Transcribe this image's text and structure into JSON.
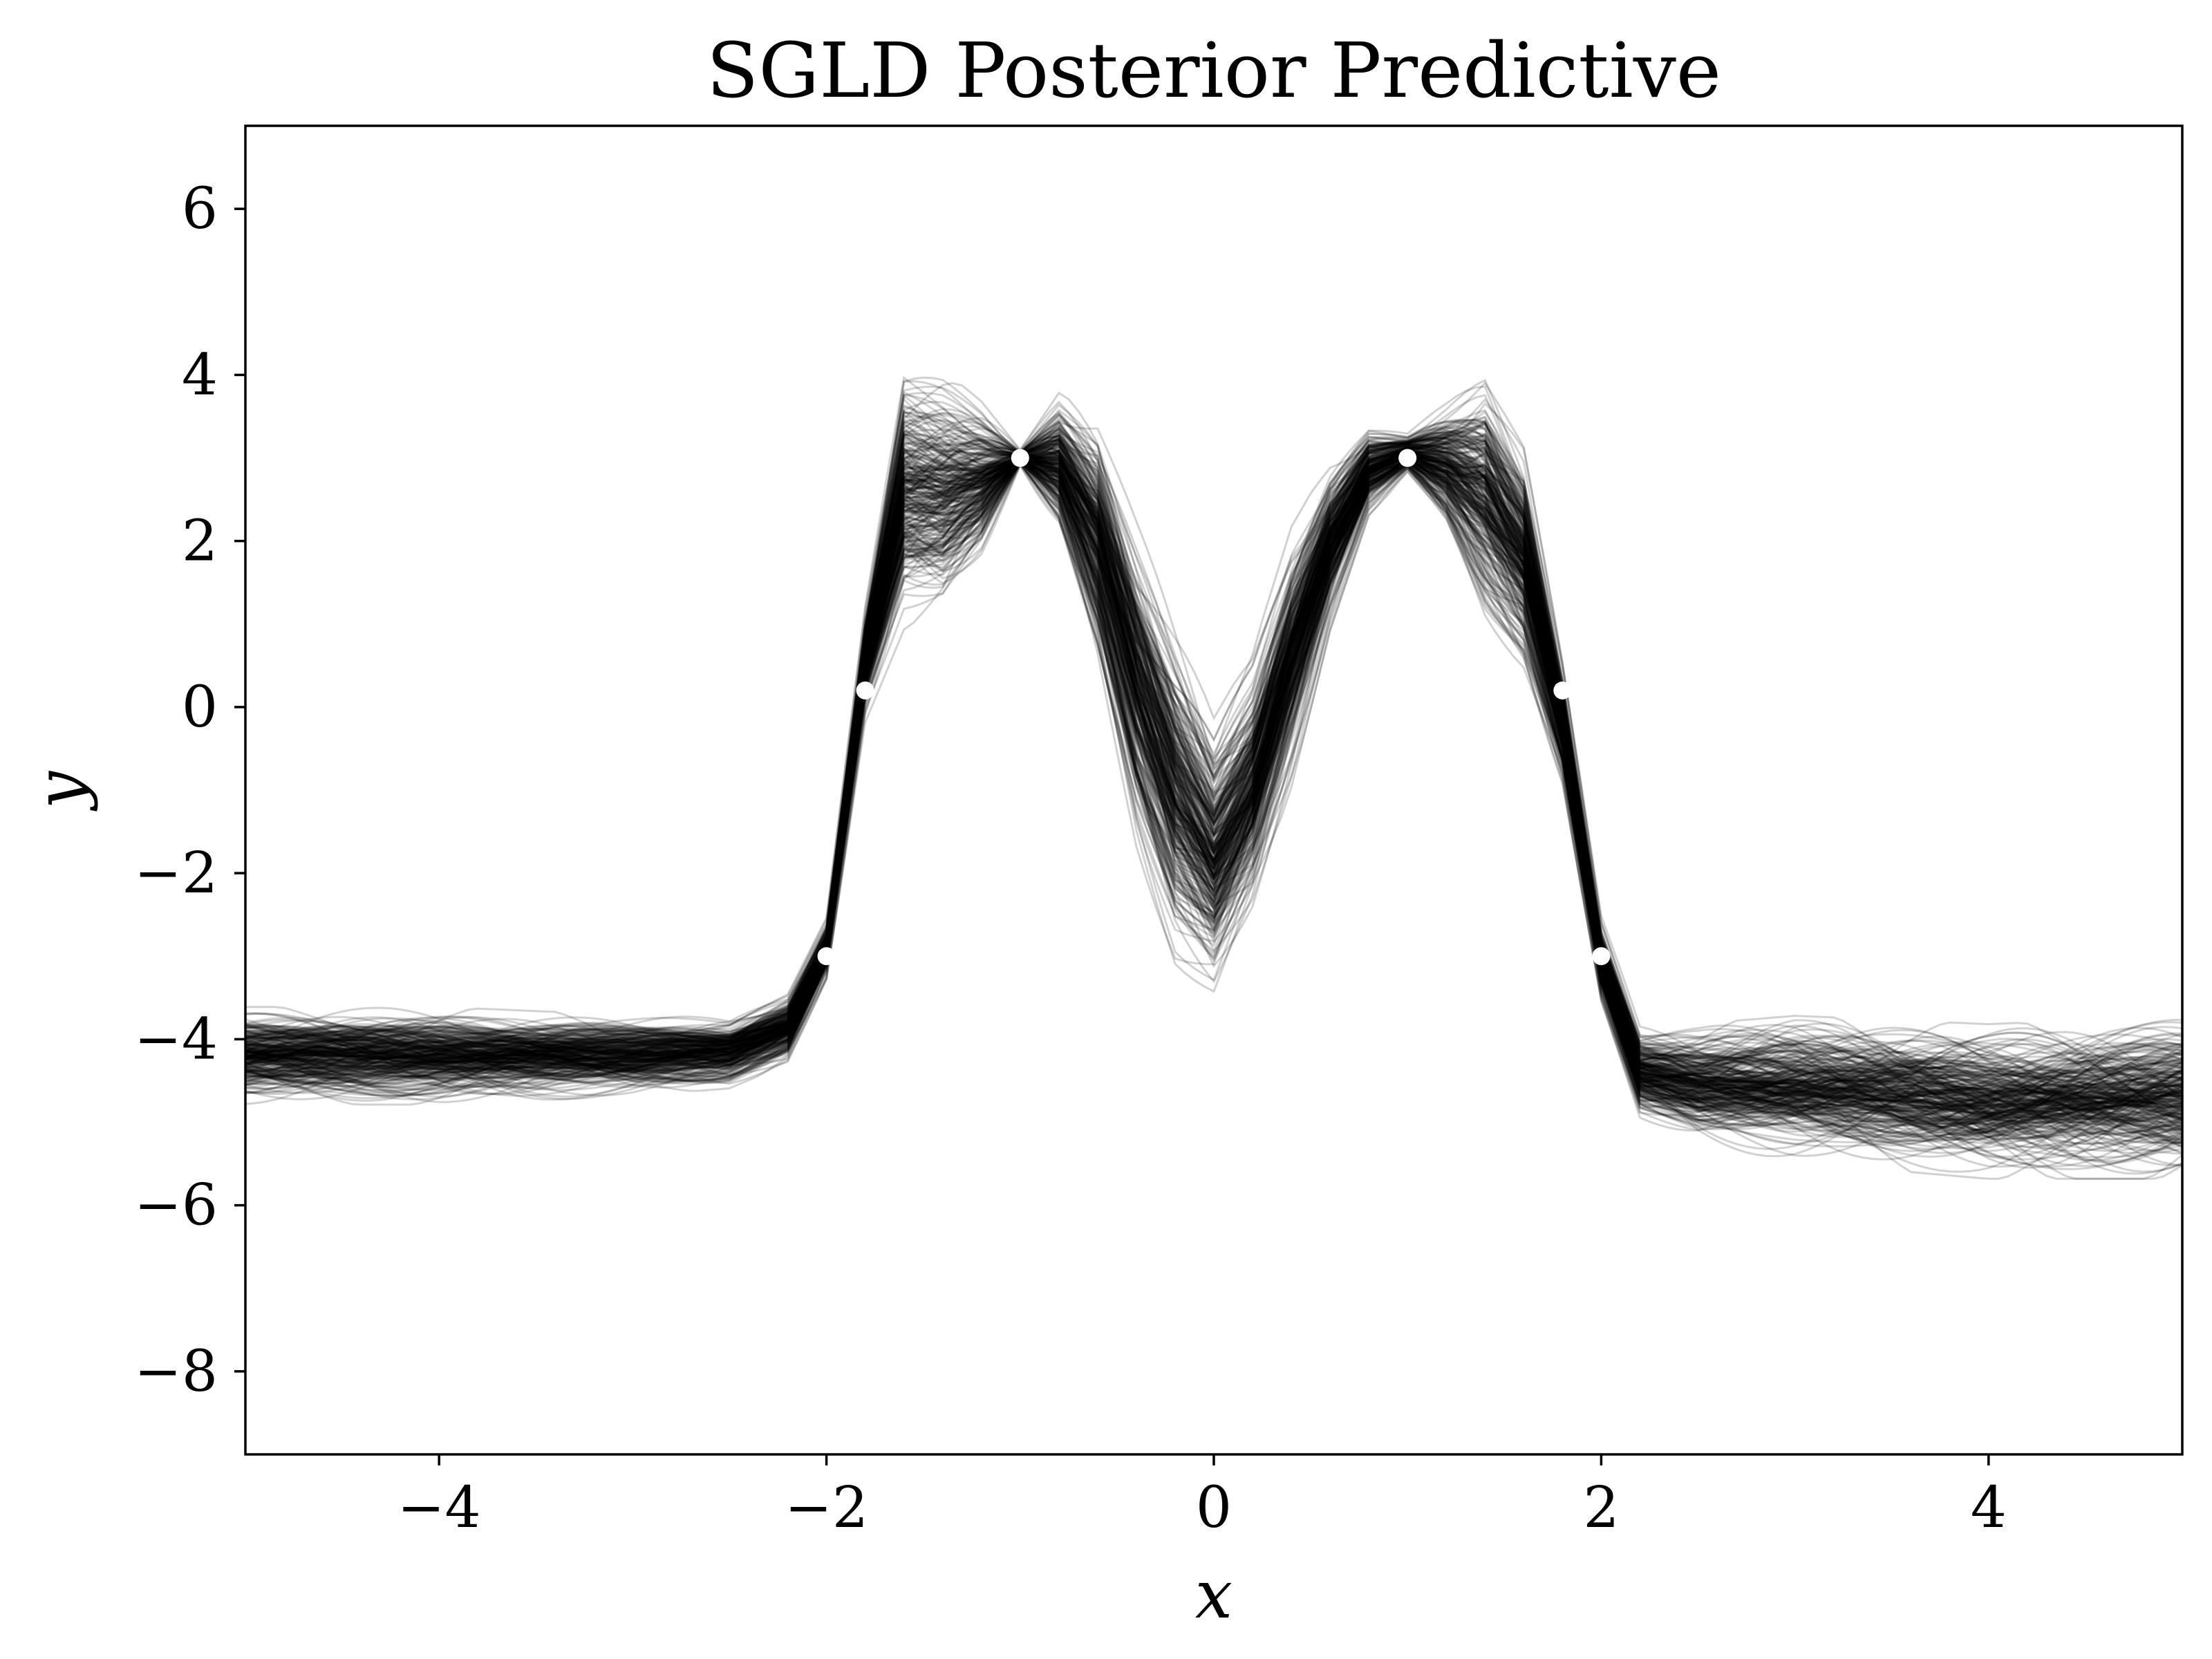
{
  "chart_data": {
    "type": "line",
    "title": "SGLD Posterior Predictive",
    "xlabel": "x",
    "ylabel": "y",
    "xlim": [
      -5,
      5
    ],
    "ylim": [
      -9,
      7
    ],
    "xticks": [
      -4,
      -2,
      0,
      2,
      4
    ],
    "yticks": [
      -8,
      -6,
      -4,
      -2,
      0,
      2,
      4,
      6
    ],
    "grid": false,
    "line_color": "#000000",
    "line_alpha": 0.18,
    "point_color": "#ffffff",
    "posterior_sample_count": 300,
    "posterior_band": {
      "x": [
        -5.0,
        -4.0,
        -3.0,
        -2.5,
        -2.2,
        -2.0,
        -1.8,
        -1.6,
        -1.4,
        -1.2,
        -1.0,
        -0.8,
        -0.6,
        -0.4,
        -0.2,
        0.0,
        0.2,
        0.4,
        0.6,
        0.8,
        1.0,
        1.2,
        1.4,
        1.6,
        1.8,
        2.0,
        2.2,
        2.5,
        3.0,
        4.0,
        5.0
      ],
      "y_low": [
        -4.8,
        -4.8,
        -4.7,
        -4.6,
        -4.3,
        -3.3,
        -0.2,
        0.9,
        1.0,
        1.7,
        2.9,
        2.0,
        0.3,
        -1.8,
        -3.2,
        -3.6,
        -2.6,
        -1.0,
        0.9,
        2.3,
        2.8,
        2.1,
        0.9,
        0.3,
        -1.0,
        -3.6,
        -5.0,
        -5.3,
        -5.5,
        -5.7,
        -5.7
      ],
      "y_high": [
        -3.6,
        -3.6,
        -3.7,
        -3.7,
        -3.4,
        -2.5,
        1.3,
        4.3,
        4.1,
        3.7,
        3.1,
        3.8,
        3.6,
        2.3,
        1.1,
        -0.1,
        0.7,
        2.2,
        3.0,
        3.4,
        3.3,
        3.7,
        4.2,
        3.3,
        0.6,
        -2.5,
        -3.8,
        -3.8,
        -3.7,
        -3.8,
        -3.7
      ]
    },
    "observations": [
      {
        "x": -2.0,
        "y": -3.0
      },
      {
        "x": -1.8,
        "y": 0.2
      },
      {
        "x": -1.0,
        "y": 3.0
      },
      {
        "x": 1.0,
        "y": 3.0
      },
      {
        "x": 1.8,
        "y": 0.2
      },
      {
        "x": 2.0,
        "y": -3.0
      }
    ]
  }
}
